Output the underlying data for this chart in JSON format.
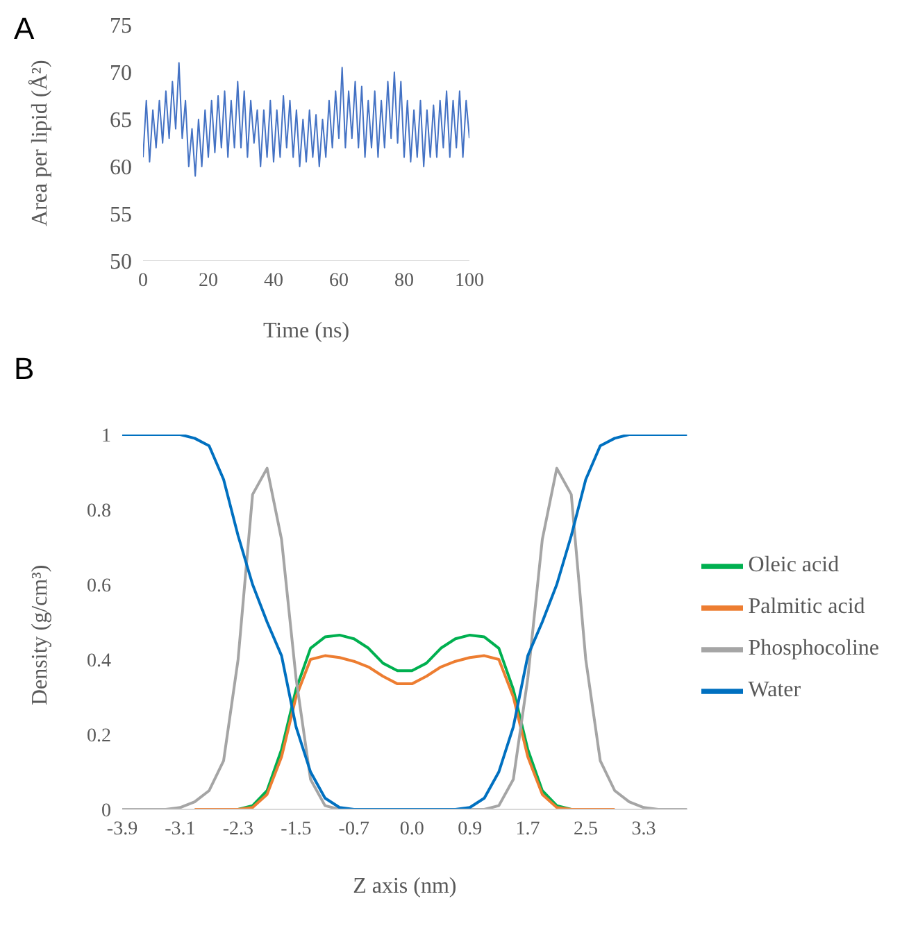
{
  "chart_data": [
    {
      "type": "line",
      "title": "A",
      "xlabel": "Time (ns)",
      "ylabel": "Area per lipid (Å²)",
      "xlim": [
        0,
        100
      ],
      "xticks": [
        0,
        20,
        40,
        60,
        80,
        100
      ],
      "ylim": [
        50,
        75
      ],
      "yticks": [
        50,
        55,
        60,
        65,
        70,
        75
      ],
      "x": [
        0,
        1,
        2,
        3,
        4,
        5,
        6,
        7,
        8,
        9,
        10,
        11,
        12,
        13,
        14,
        15,
        16,
        17,
        18,
        19,
        20,
        21,
        22,
        23,
        24,
        25,
        26,
        27,
        28,
        29,
        30,
        31,
        32,
        33,
        34,
        35,
        36,
        37,
        38,
        39,
        40,
        41,
        42,
        43,
        44,
        45,
        46,
        47,
        48,
        49,
        50,
        51,
        52,
        53,
        54,
        55,
        56,
        57,
        58,
        59,
        60,
        61,
        62,
        63,
        64,
        65,
        66,
        67,
        68,
        69,
        70,
        71,
        72,
        73,
        74,
        75,
        76,
        77,
        78,
        79,
        80,
        81,
        82,
        83,
        84,
        85,
        86,
        87,
        88,
        89,
        90,
        91,
        92,
        93,
        94,
        95,
        96,
        97,
        98,
        99,
        100
      ],
      "series": [
        {
          "color": "#4472c4",
          "values": [
            61,
            67,
            60.5,
            66,
            62,
            67,
            62.5,
            68,
            63,
            69,
            64,
            71,
            63,
            67,
            60,
            64,
            59,
            65,
            60,
            66,
            61,
            67,
            61.5,
            67.5,
            62,
            68,
            61,
            67,
            62,
            69,
            62,
            68,
            61,
            67,
            62.5,
            66,
            60,
            66,
            61,
            67,
            60.5,
            66,
            61,
            67.5,
            62,
            67,
            61,
            66,
            60,
            65,
            60.5,
            66,
            61,
            65.5,
            60,
            65,
            61,
            67,
            62,
            68,
            63,
            70.5,
            62,
            68,
            63,
            69,
            62,
            68.5,
            61,
            67,
            62,
            68,
            61,
            67,
            62,
            69,
            63,
            70,
            62.5,
            69,
            61,
            67,
            60.5,
            66,
            61,
            67,
            60,
            66,
            61,
            66.5,
            61,
            67,
            62,
            68,
            61,
            67,
            62,
            68,
            61,
            67,
            63
          ]
        }
      ]
    },
    {
      "type": "line",
      "title": "B",
      "xlabel": "Z axis (nm)",
      "ylabel": "Density (g/cm³)",
      "ylim": [
        0,
        1
      ],
      "yticks": [
        0,
        0.2,
        0.4,
        0.6,
        0.8,
        1
      ],
      "legend": "right",
      "categories": [
        "-3.9",
        null,
        null,
        null,
        "-3.1",
        null,
        null,
        null,
        "-2.3",
        null,
        null,
        null,
        "-1.5",
        null,
        null,
        null,
        "-0.7",
        null,
        null,
        null,
        "0.0",
        null,
        null,
        null,
        "0.9",
        null,
        null,
        null,
        "1.7",
        null,
        null,
        null,
        "2.5",
        null,
        null,
        null,
        "3.3",
        null,
        null,
        null
      ],
      "series": [
        {
          "name": "Oleic acid",
          "color": "#00b050",
          "values": [
            null,
            null,
            null,
            null,
            null,
            null,
            null,
            0,
            0,
            0.01,
            0.05,
            0.16,
            0.32,
            0.43,
            0.46,
            0.465,
            0.455,
            0.43,
            0.39,
            0.37,
            0.37,
            0.39,
            0.43,
            0.455,
            0.465,
            0.46,
            0.43,
            0.32,
            0.16,
            0.05,
            0.01,
            0,
            0,
            null,
            null,
            null,
            null,
            null,
            null,
            null
          ]
        },
        {
          "name": "Palmitic acid",
          "color": "#ed7d31",
          "values": [
            null,
            null,
            null,
            null,
            null,
            0,
            0,
            0,
            0,
            0.005,
            0.04,
            0.14,
            0.3,
            0.4,
            0.41,
            0.405,
            0.395,
            0.38,
            0.355,
            0.335,
            0.335,
            0.355,
            0.38,
            0.395,
            0.405,
            0.41,
            0.4,
            0.3,
            0.14,
            0.04,
            0.005,
            0,
            0,
            0,
            0,
            null,
            null,
            null,
            null,
            null
          ]
        },
        {
          "name": "Phosphocoline",
          "color": "#a5a5a5",
          "values": [
            0,
            0,
            0,
            0,
            0.005,
            0.02,
            0.05,
            0.13,
            0.4,
            0.84,
            0.91,
            0.72,
            0.35,
            0.08,
            0.01,
            0,
            0,
            0,
            0,
            0,
            0,
            0,
            0,
            0,
            0,
            0,
            0.01,
            0.08,
            0.35,
            0.72,
            0.91,
            0.84,
            0.4,
            0.13,
            0.05,
            0.02,
            0.005,
            0,
            0,
            0
          ]
        },
        {
          "name": "Water",
          "color": "#0070c0",
          "values": [
            1,
            1,
            1,
            1,
            1,
            0.99,
            0.97,
            0.88,
            0.73,
            0.6,
            0.5,
            0.41,
            0.22,
            0.1,
            0.03,
            0.005,
            0,
            0,
            0,
            0,
            0,
            0,
            0,
            0,
            0.005,
            0.03,
            0.1,
            0.22,
            0.41,
            0.5,
            0.6,
            0.73,
            0.88,
            0.97,
            0.99,
            1,
            1,
            1,
            1,
            1
          ]
        }
      ]
    }
  ]
}
